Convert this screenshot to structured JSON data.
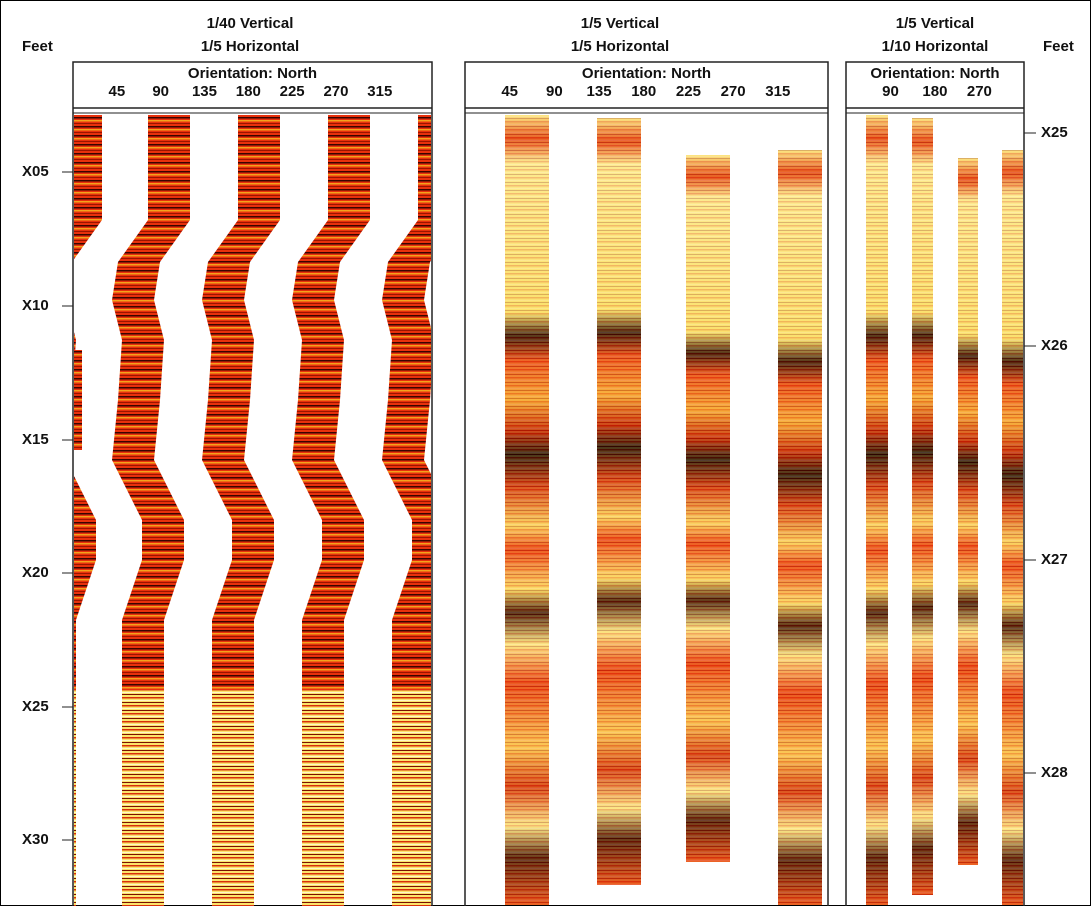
{
  "left_axis": {
    "label": "Feet",
    "depths": [
      "X05",
      "X10",
      "X15",
      "X20",
      "X25",
      "X30"
    ]
  },
  "right_axis": {
    "label": "Feet",
    "depths": [
      "X25",
      "X26",
      "X27",
      "X28"
    ]
  },
  "panels": [
    {
      "title": [
        "1/40 Vertical",
        "1/5 Horizontal"
      ],
      "axis_label": "Orientation: North",
      "ticks": [
        45,
        90,
        135,
        180,
        225,
        270,
        315
      ]
    },
    {
      "title": [
        "1/5 Vertical",
        "1/5 Horizontal"
      ],
      "axis_label": "Orientation: North",
      "ticks": [
        45,
        90,
        135,
        180,
        225,
        270,
        315
      ]
    },
    {
      "title": [
        "1/5 Vertical",
        "1/10 Horizontal"
      ],
      "axis_label": "Orientation: North",
      "ticks": [
        90,
        180,
        270
      ]
    }
  ]
}
